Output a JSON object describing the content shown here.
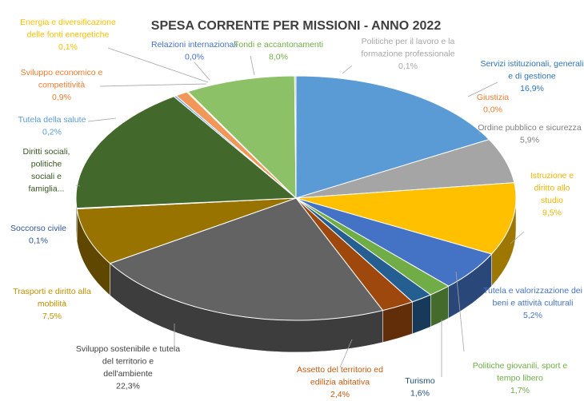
{
  "chart_data": {
    "type": "pie",
    "title": "SPESA CORRENTE PER MISSIONI - ANNO 2022",
    "slices": [
      {
        "name": "Servizi istituzionali, generali e di gestione",
        "label_lines": [
          "Servizi istituzionali, generali",
          "e di gestione"
        ],
        "value_label": "16,9%",
        "value": 16.9,
        "color": "#5b9bd5",
        "text_color": "#2e75b6"
      },
      {
        "name": "Giustizia",
        "label_lines": [
          "Giustizia"
        ],
        "value_label": "0,0%",
        "value": 0.0,
        "color": "#ed7d31",
        "text_color": "#ed7d31"
      },
      {
        "name": "Ordine pubblico e sicurezza",
        "label_lines": [
          "Ordine pubblico e sicurezza"
        ],
        "value_label": "5,9%",
        "value": 5.9,
        "color": "#a5a5a5",
        "text_color": "#808080"
      },
      {
        "name": "Istruzione e diritto allo studio",
        "label_lines": [
          "Istruzione e",
          "diritto allo",
          "studio"
        ],
        "value_label": "9,5%",
        "value": 9.5,
        "color": "#ffc000",
        "text_color": "#f0b400"
      },
      {
        "name": "Tutela e valorizzazione dei beni e attività culturali",
        "label_lines": [
          "Tutela e valorizzazione dei",
          "beni e attività culturali"
        ],
        "value_label": "5,2%",
        "value": 5.2,
        "color": "#4472c4",
        "text_color": "#4472c4"
      },
      {
        "name": "Politiche giovanili, sport e tempo libero",
        "label_lines": [
          "Politiche giovanili, sport e",
          "tempo libero"
        ],
        "value_label": "1,7%",
        "value": 1.7,
        "color": "#70ad47",
        "text_color": "#70ad47"
      },
      {
        "name": "Turismo",
        "label_lines": [
          "Turismo"
        ],
        "value_label": "1,6%",
        "value": 1.6,
        "color": "#255e91",
        "text_color": "#1f4e79"
      },
      {
        "name": "Assetto del territorio ed edilizia abitativa",
        "label_lines": [
          "Assetto del territorio ed",
          "edilizia abitativa"
        ],
        "value_label": "2,4%",
        "value": 2.4,
        "color": "#9e480e",
        "text_color": "#c55a11"
      },
      {
        "name": "Sviluppo sostenibile e tutela del territorio e dell'ambiente",
        "label_lines": [
          "Sviluppo sostenibile e tutela",
          "del territorio e",
          "dell'ambiente"
        ],
        "value_label": "22,3%",
        "value": 22.3,
        "color": "#636363",
        "text_color": "#404040"
      },
      {
        "name": "Trasporti e diritto alla mobilità",
        "label_lines": [
          "Trasporti e diritto alla",
          "mobilità"
        ],
        "value_label": "7,5%",
        "value": 7.5,
        "color": "#997300",
        "text_color": "#bf9000"
      },
      {
        "name": "Soccorso civile",
        "label_lines": [
          "Soccorso civile"
        ],
        "value_label": "0,1%",
        "value": 0.1,
        "color": "#264478",
        "text_color": "#2f5597"
      },
      {
        "name": "Diritti sociali, politiche sociali e famiglia...",
        "label_lines": [
          "Diritti sociali,",
          "politiche",
          "sociali e",
          "famiglia..."
        ],
        "value_label": "",
        "value": 16.8,
        "color": "#43682b",
        "text_color": "#375623"
      },
      {
        "name": "Tutela della salute",
        "label_lines": [
          "Tutela della salute"
        ],
        "value_label": "0,2%",
        "value": 0.2,
        "color": "#7cafdd",
        "text_color": "#5b9bd5"
      },
      {
        "name": "Sviluppo economico e competitività",
        "label_lines": [
          "Sviluppo economico e",
          "competitività"
        ],
        "value_label": "0,9%",
        "value": 0.9,
        "color": "#f1975a",
        "text_color": "#ed7d31"
      },
      {
        "name": "Energia e diversificazione delle fonti energetiche",
        "label_lines": [
          "Energia e diversificazione",
          "delle fonti energetiche"
        ],
        "value_label": "0,1%",
        "value": 0.1,
        "color": "#ffcd33",
        "text_color": "#ffc000"
      },
      {
        "name": "Relazioni internazionali",
        "label_lines": [
          "Relazioni internazionali"
        ],
        "value_label": "0,0%",
        "value": 0.0,
        "color": "#698ed0",
        "text_color": "#4472c4"
      },
      {
        "name": "Fondi e accantonamenti",
        "label_lines": [
          "Fondi e accantonamenti"
        ],
        "value_label": "8,0%",
        "value": 8.0,
        "color": "#8cc168",
        "text_color": "#70ad47"
      },
      {
        "name": "Politiche per il lavoro e la formazione professionale",
        "label_lines": [
          "Politiche per il lavoro e la",
          "formazione professionale"
        ],
        "value_label": "0,1%",
        "value": 0.1,
        "color": "#b7b7b7",
        "text_color": "#a6a6a6"
      }
    ]
  }
}
